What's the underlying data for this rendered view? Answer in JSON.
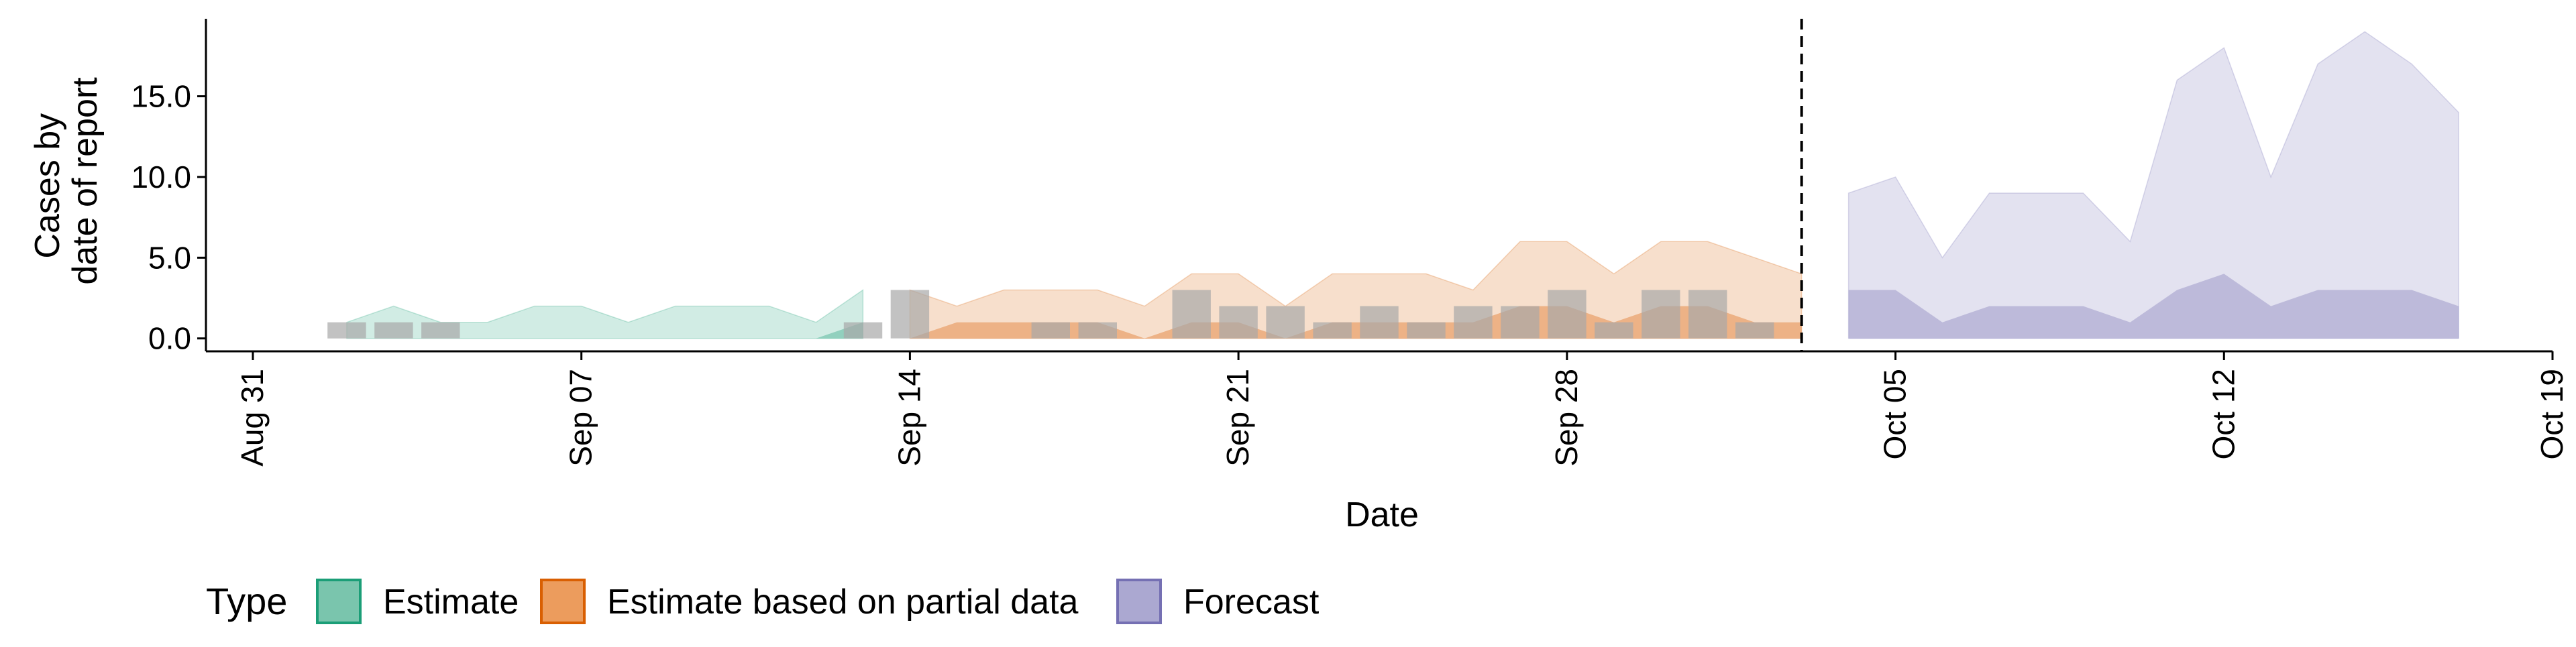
{
  "chart_data": {
    "type": "area",
    "xlabel": "Date",
    "ylabel_lines": [
      "Cases by",
      "date of report"
    ],
    "x_tick_labels": [
      "Aug 31",
      "Sep 07",
      "Sep 14",
      "Sep 21",
      "Sep 28",
      "Oct 05",
      "Oct 12",
      "Oct 19"
    ],
    "x_ticks": [
      "2020-08-31",
      "2020-09-07",
      "2020-09-14",
      "2020-09-21",
      "2020-09-28",
      "2020-10-05",
      "2020-10-12",
      "2020-10-19"
    ],
    "xlim": [
      "2020-08-30",
      "2020-10-19"
    ],
    "y_tick_labels": [
      "0.0",
      "5.0",
      "10.0",
      "15.0"
    ],
    "y_ticks": [
      0,
      5,
      10,
      15
    ],
    "ylim": [
      -0.8,
      19.8
    ],
    "vline_date": "2020-10-03",
    "grid": false,
    "legend_position": "bottom",
    "legend": {
      "title": "Type",
      "items": [
        {
          "label": "Estimate",
          "fill": "#7ac5ad",
          "stroke": "#1b9e77"
        },
        {
          "label": "Estimate based on partial data",
          "fill": "#ec9c5d",
          "stroke": "#d95f02"
        },
        {
          "label": "Forecast",
          "fill": "#aba8d1",
          "stroke": "#7570b3"
        }
      ]
    },
    "series": [
      {
        "type_label": "Estimate",
        "color": "#1b9e77",
        "dates": [
          "2020-09-02",
          "2020-09-03",
          "2020-09-04",
          "2020-09-05",
          "2020-09-06",
          "2020-09-07",
          "2020-09-08",
          "2020-09-09",
          "2020-09-10",
          "2020-09-11",
          "2020-09-12",
          "2020-09-13"
        ],
        "outer_lower": [
          0,
          0,
          0,
          0,
          0,
          0,
          0,
          0,
          0,
          0,
          0,
          0
        ],
        "outer_upper": [
          1,
          2,
          1,
          1,
          2,
          2,
          1,
          2,
          2,
          2,
          1,
          3
        ],
        "inner_lower": [
          0,
          0,
          0,
          0,
          0,
          0,
          0,
          0,
          0,
          0,
          0,
          0
        ],
        "inner_upper": [
          0,
          0,
          0,
          0,
          0,
          0,
          0,
          0,
          0,
          0,
          0,
          1
        ]
      },
      {
        "type_label": "Estimate based on partial data",
        "color": "#d95f02",
        "dates": [
          "2020-09-14",
          "2020-09-15",
          "2020-09-16",
          "2020-09-17",
          "2020-09-18",
          "2020-09-19",
          "2020-09-20",
          "2020-09-21",
          "2020-09-22",
          "2020-09-23",
          "2020-09-24",
          "2020-09-25",
          "2020-09-26",
          "2020-09-27",
          "2020-09-28",
          "2020-09-29",
          "2020-09-30",
          "2020-10-01",
          "2020-10-02",
          "2020-10-03"
        ],
        "outer_lower": [
          0,
          0,
          0,
          0,
          0,
          0,
          0,
          0,
          0,
          0,
          0,
          0,
          0,
          0,
          0,
          0,
          0,
          0,
          0,
          0
        ],
        "outer_upper": [
          3,
          2,
          3,
          3,
          3,
          2,
          4,
          4,
          2,
          4,
          4,
          4,
          3,
          6,
          6,
          4,
          6,
          6,
          5,
          4
        ],
        "inner_lower": [
          0,
          0,
          0,
          0,
          0,
          0,
          0,
          0,
          0,
          0,
          0,
          0,
          0,
          0,
          0,
          0,
          0,
          0,
          0,
          0
        ],
        "inner_upper": [
          0,
          1,
          1,
          1,
          1,
          0,
          1,
          1,
          0,
          1,
          1,
          1,
          1,
          2,
          2,
          1,
          2,
          2,
          1,
          1
        ]
      },
      {
        "type_label": "Forecast",
        "color": "#7570b3",
        "dates": [
          "2020-10-04",
          "2020-10-05",
          "2020-10-06",
          "2020-10-07",
          "2020-10-08",
          "2020-10-09",
          "2020-10-10",
          "2020-10-11",
          "2020-10-12",
          "2020-10-13",
          "2020-10-14",
          "2020-10-15",
          "2020-10-16",
          "2020-10-17"
        ],
        "outer_lower": [
          0,
          0,
          0,
          0,
          0,
          0,
          0,
          0,
          0,
          0,
          0,
          0,
          0,
          0
        ],
        "outer_upper": [
          9,
          10,
          5,
          9,
          9,
          9,
          6,
          16,
          18,
          10,
          17,
          19,
          17,
          14
        ],
        "inner_lower": [
          0,
          0,
          0,
          0,
          0,
          0,
          0,
          0,
          0,
          0,
          0,
          0,
          0,
          0
        ],
        "inner_upper": [
          3,
          3,
          1,
          2,
          2,
          2,
          1,
          3,
          4,
          2,
          3,
          3,
          3,
          2
        ]
      }
    ],
    "reported_cases": {
      "color": "#a8a8a8",
      "dates": [
        "2020-09-02",
        "2020-09-03",
        "2020-09-04",
        "2020-09-13",
        "2020-09-14",
        "2020-09-17",
        "2020-09-18",
        "2020-09-20",
        "2020-09-21",
        "2020-09-22",
        "2020-09-23",
        "2020-09-24",
        "2020-09-25",
        "2020-09-26",
        "2020-09-27",
        "2020-09-28",
        "2020-09-29",
        "2020-09-30",
        "2020-10-01",
        "2020-10-02"
      ],
      "values": [
        1,
        1,
        1,
        1,
        3,
        1,
        1,
        3,
        2,
        2,
        1,
        2,
        1,
        2,
        2,
        3,
        1,
        3,
        3,
        1
      ]
    }
  }
}
